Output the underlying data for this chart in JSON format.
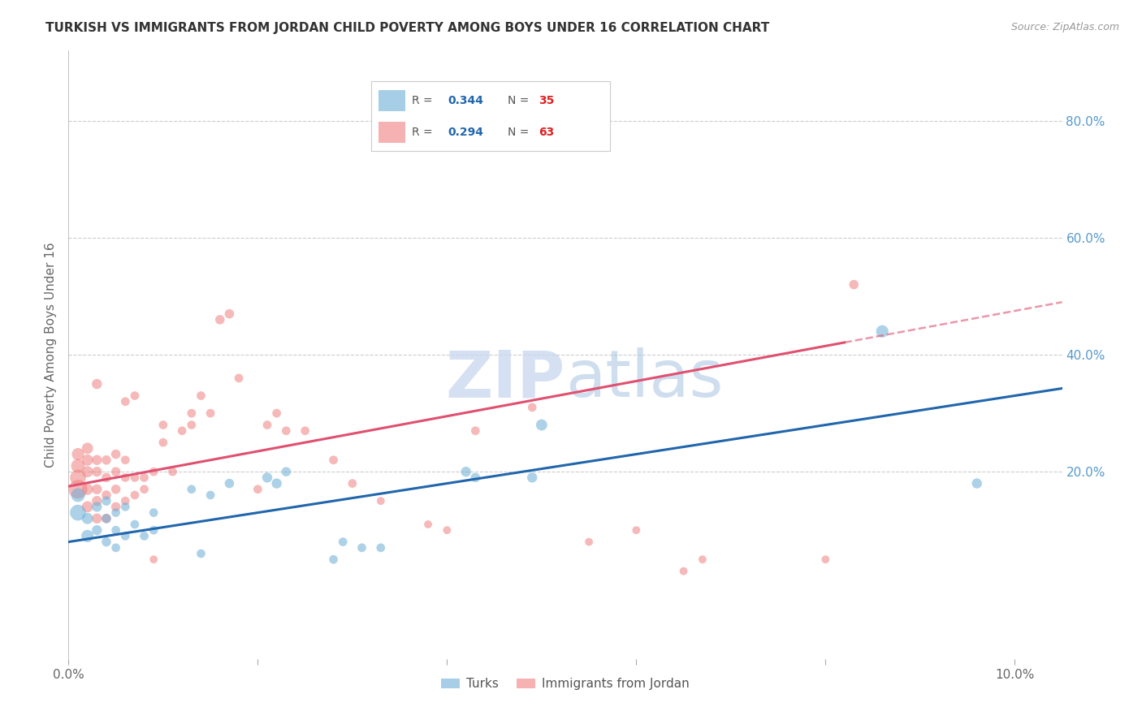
{
  "title": "TURKISH VS IMMIGRANTS FROM JORDAN CHILD POVERTY AMONG BOYS UNDER 16 CORRELATION CHART",
  "source": "Source: ZipAtlas.com",
  "ylabel": "Child Poverty Among Boys Under 16",
  "r_turks": 0.344,
  "n_turks": 35,
  "r_jordan": 0.294,
  "n_jordan": 63,
  "turks_color": "#6baed6",
  "jordan_color": "#f08080",
  "turks_line_color": "#2166ac",
  "jordan_line_color": "#e05070",
  "background_color": "#ffffff",
  "grid_color": "#cccccc",
  "right_axis_color": "#5599cc",
  "watermark_color": "#ccddf0",
  "xlim": [
    0.0,
    0.105
  ],
  "ylim": [
    -0.12,
    0.92
  ],
  "right_yticks": [
    0.2,
    0.4,
    0.6,
    0.8
  ],
  "right_yticklabels": [
    "20.0%",
    "40.0%",
    "60.0%",
    "80.0%"
  ],
  "bottom_xticks": [
    0.0,
    0.02,
    0.04,
    0.06,
    0.08,
    0.1
  ],
  "bottom_xticklabels": [
    "0.0%",
    "",
    "",
    "",
    "",
    "10.0%"
  ],
  "turks_x": [
    0.001,
    0.001,
    0.002,
    0.002,
    0.003,
    0.003,
    0.004,
    0.004,
    0.004,
    0.005,
    0.005,
    0.005,
    0.006,
    0.006,
    0.007,
    0.008,
    0.009,
    0.009,
    0.013,
    0.014,
    0.015,
    0.017,
    0.021,
    0.022,
    0.023,
    0.028,
    0.029,
    0.031,
    0.033,
    0.042,
    0.043,
    0.049,
    0.05,
    0.086,
    0.096
  ],
  "turks_y": [
    0.13,
    0.16,
    0.09,
    0.12,
    0.1,
    0.14,
    0.08,
    0.12,
    0.15,
    0.07,
    0.1,
    0.13,
    0.09,
    0.14,
    0.11,
    0.09,
    0.1,
    0.13,
    0.17,
    0.06,
    0.16,
    0.18,
    0.19,
    0.18,
    0.2,
    0.05,
    0.08,
    0.07,
    0.07,
    0.2,
    0.19,
    0.19,
    0.28,
    0.44,
    0.18
  ],
  "turks_sizes": [
    200,
    150,
    120,
    100,
    80,
    80,
    70,
    70,
    70,
    60,
    60,
    60,
    60,
    60,
    60,
    60,
    60,
    60,
    60,
    60,
    60,
    70,
    80,
    80,
    70,
    60,
    60,
    60,
    60,
    80,
    70,
    80,
    100,
    120,
    80
  ],
  "jordan_x": [
    0.001,
    0.001,
    0.001,
    0.001,
    0.002,
    0.002,
    0.002,
    0.002,
    0.002,
    0.003,
    0.003,
    0.003,
    0.003,
    0.003,
    0.003,
    0.004,
    0.004,
    0.004,
    0.004,
    0.005,
    0.005,
    0.005,
    0.005,
    0.006,
    0.006,
    0.006,
    0.006,
    0.007,
    0.007,
    0.007,
    0.008,
    0.008,
    0.009,
    0.009,
    0.01,
    0.01,
    0.011,
    0.012,
    0.013,
    0.013,
    0.014,
    0.015,
    0.016,
    0.017,
    0.018,
    0.02,
    0.021,
    0.022,
    0.023,
    0.025,
    0.028,
    0.03,
    0.033,
    0.038,
    0.04,
    0.043,
    0.049,
    0.055,
    0.06,
    0.065,
    0.067,
    0.08,
    0.083
  ],
  "jordan_y": [
    0.17,
    0.19,
    0.21,
    0.23,
    0.14,
    0.17,
    0.2,
    0.22,
    0.24,
    0.12,
    0.15,
    0.17,
    0.2,
    0.22,
    0.35,
    0.12,
    0.16,
    0.19,
    0.22,
    0.14,
    0.17,
    0.2,
    0.23,
    0.15,
    0.19,
    0.22,
    0.32,
    0.16,
    0.19,
    0.33,
    0.17,
    0.19,
    0.05,
    0.2,
    0.25,
    0.28,
    0.2,
    0.27,
    0.28,
    0.3,
    0.33,
    0.3,
    0.46,
    0.47,
    0.36,
    0.17,
    0.28,
    0.3,
    0.27,
    0.27,
    0.22,
    0.18,
    0.15,
    0.11,
    0.1,
    0.27,
    0.31,
    0.08,
    0.1,
    0.03,
    0.05,
    0.05,
    0.52
  ],
  "jordan_sizes": [
    280,
    200,
    150,
    120,
    100,
    100,
    100,
    100,
    100,
    80,
    80,
    80,
    80,
    80,
    80,
    70,
    70,
    70,
    70,
    70,
    70,
    70,
    70,
    60,
    60,
    60,
    60,
    60,
    60,
    60,
    60,
    60,
    50,
    60,
    60,
    60,
    60,
    60,
    60,
    60,
    60,
    60,
    70,
    70,
    60,
    60,
    60,
    60,
    60,
    60,
    60,
    60,
    50,
    50,
    50,
    60,
    60,
    50,
    50,
    50,
    50,
    50,
    70
  ]
}
